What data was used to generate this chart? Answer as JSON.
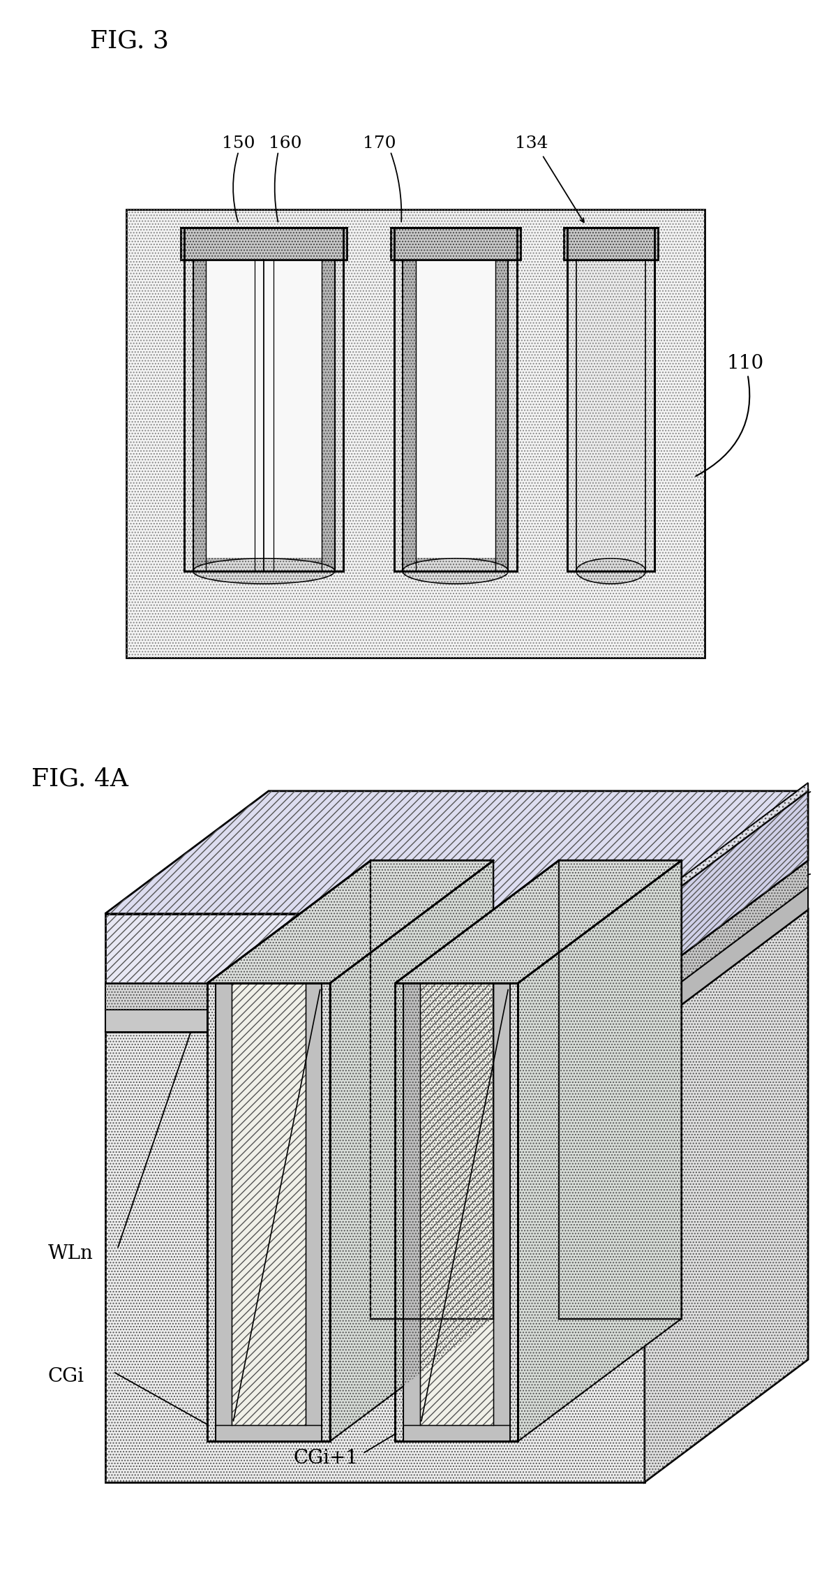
{
  "fig3_title": "FIG. 3",
  "fig4a_title": "FIG. 4A",
  "bg_color": "#ffffff",
  "lc": "#000000",
  "gray_substrate": "#f0f0f0",
  "gray_dotted": "#e8e8e8",
  "gray_medium": "#d0d0d0",
  "gray_dark": "#a0a0a0",
  "gray_light": "#f8f8f8"
}
